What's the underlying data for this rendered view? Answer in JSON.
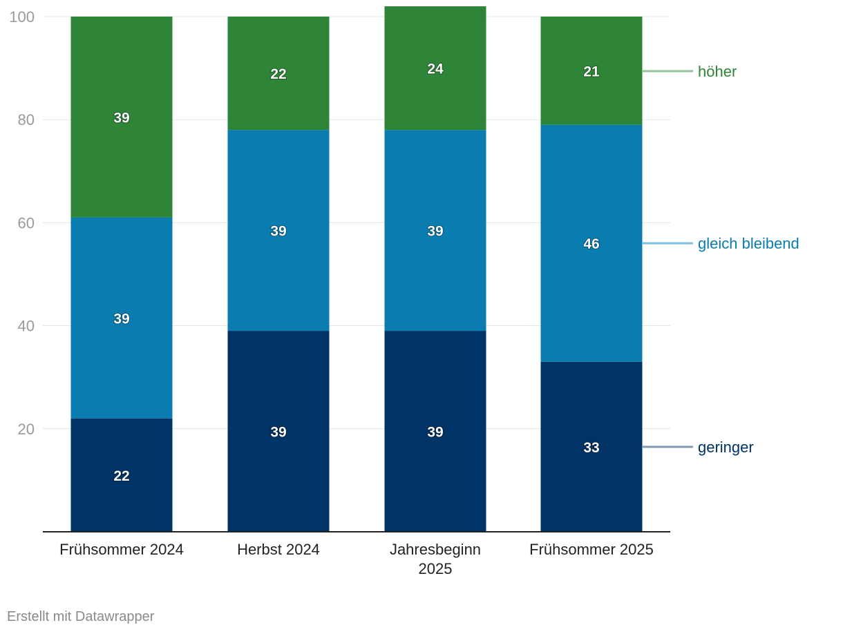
{
  "chart_data": {
    "type": "bar",
    "stacked": true,
    "categories": [
      [
        "Frühsommer 2024"
      ],
      [
        "Herbst 2024"
      ],
      [
        "Jahresbeginn",
        "2025"
      ],
      [
        "Frühsommer 2025"
      ]
    ],
    "series": [
      {
        "name": "geringer",
        "values": [
          22,
          39,
          39,
          33
        ],
        "color": "#003366",
        "legend_color": "#7f99b3"
      },
      {
        "name": "gleich bleibend",
        "values": [
          39,
          39,
          39,
          46
        ],
        "color": "#0a7cb0",
        "legend_color": "#7ec0e0"
      },
      {
        "name": "höher",
        "values": [
          39,
          22,
          24,
          21
        ],
        "color": "#2e8538",
        "legend_color": "#93c49a"
      }
    ],
    "yticks": [
      20,
      40,
      60,
      80,
      100
    ],
    "ylim": [
      0,
      100
    ],
    "grid": true,
    "legend": "right, labelled at series"
  },
  "footer": {
    "credit": "Erstellt mit Datawrapper"
  }
}
